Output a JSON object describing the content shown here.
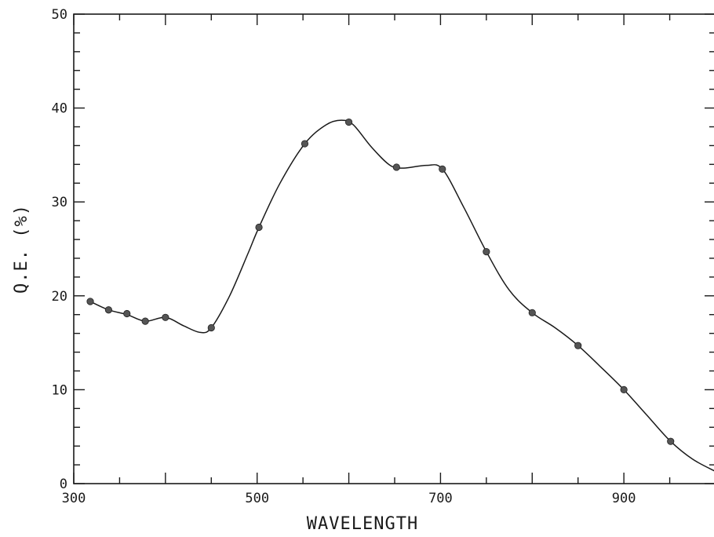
{
  "chart_data": {
    "type": "line",
    "title": "",
    "xlabel": "WAVELENGTH",
    "ylabel": "Q.E.  (%)",
    "xlim": [
      300,
      1000
    ],
    "ylim": [
      0,
      50
    ],
    "x_ticks": [
      300,
      500,
      700,
      900
    ],
    "x_tick_labels": [
      "300",
      "500",
      "700",
      "900"
    ],
    "y_ticks": [
      0,
      10,
      20,
      30,
      40,
      50
    ],
    "y_tick_labels": [
      "0",
      "10",
      "20",
      "30",
      "40",
      "50"
    ],
    "grid": false,
    "legend": "none",
    "line_color": "#1a1a1a",
    "marker_color": "#555555",
    "series": [
      {
        "markers": true,
        "points": [
          {
            "x": 318,
            "y": 19.4
          },
          {
            "x": 338,
            "y": 18.5
          },
          {
            "x": 358,
            "y": 18.1
          },
          {
            "x": 378,
            "y": 17.3
          },
          {
            "x": 400,
            "y": 17.7
          },
          {
            "x": 450,
            "y": 16.6
          },
          {
            "x": 502,
            "y": 27.3
          },
          {
            "x": 552,
            "y": 36.2
          },
          {
            "x": 600,
            "y": 38.5
          },
          {
            "x": 652,
            "y": 33.7
          },
          {
            "x": 702,
            "y": 33.5
          },
          {
            "x": 750,
            "y": 24.7
          },
          {
            "x": 800,
            "y": 18.2
          },
          {
            "x": 850,
            "y": 14.7
          },
          {
            "x": 900,
            "y": 10.0
          },
          {
            "x": 951,
            "y": 4.5
          }
        ],
        "curve": [
          {
            "x": 318,
            "y": 19.4
          },
          {
            "x": 338,
            "y": 18.5
          },
          {
            "x": 358,
            "y": 18.0
          },
          {
            "x": 378,
            "y": 17.3
          },
          {
            "x": 400,
            "y": 17.7
          },
          {
            "x": 420,
            "y": 16.8
          },
          {
            "x": 438,
            "y": 16.1
          },
          {
            "x": 450,
            "y": 16.6
          },
          {
            "x": 470,
            "y": 20.0
          },
          {
            "x": 490,
            "y": 24.5
          },
          {
            "x": 502,
            "y": 27.3
          },
          {
            "x": 525,
            "y": 32.0
          },
          {
            "x": 552,
            "y": 36.2
          },
          {
            "x": 575,
            "y": 38.2
          },
          {
            "x": 592,
            "y": 38.7
          },
          {
            "x": 605,
            "y": 38.2
          },
          {
            "x": 625,
            "y": 35.8
          },
          {
            "x": 645,
            "y": 33.9
          },
          {
            "x": 660,
            "y": 33.6
          },
          {
            "x": 685,
            "y": 33.9
          },
          {
            "x": 702,
            "y": 33.5
          },
          {
            "x": 725,
            "y": 29.5
          },
          {
            "x": 750,
            "y": 24.7
          },
          {
            "x": 775,
            "y": 20.6
          },
          {
            "x": 800,
            "y": 18.2
          },
          {
            "x": 825,
            "y": 16.6
          },
          {
            "x": 850,
            "y": 14.7
          },
          {
            "x": 875,
            "y": 12.4
          },
          {
            "x": 900,
            "y": 10.0
          },
          {
            "x": 925,
            "y": 7.3
          },
          {
            "x": 951,
            "y": 4.5
          },
          {
            "x": 975,
            "y": 2.6
          },
          {
            "x": 1000,
            "y": 1.3
          }
        ]
      }
    ]
  }
}
